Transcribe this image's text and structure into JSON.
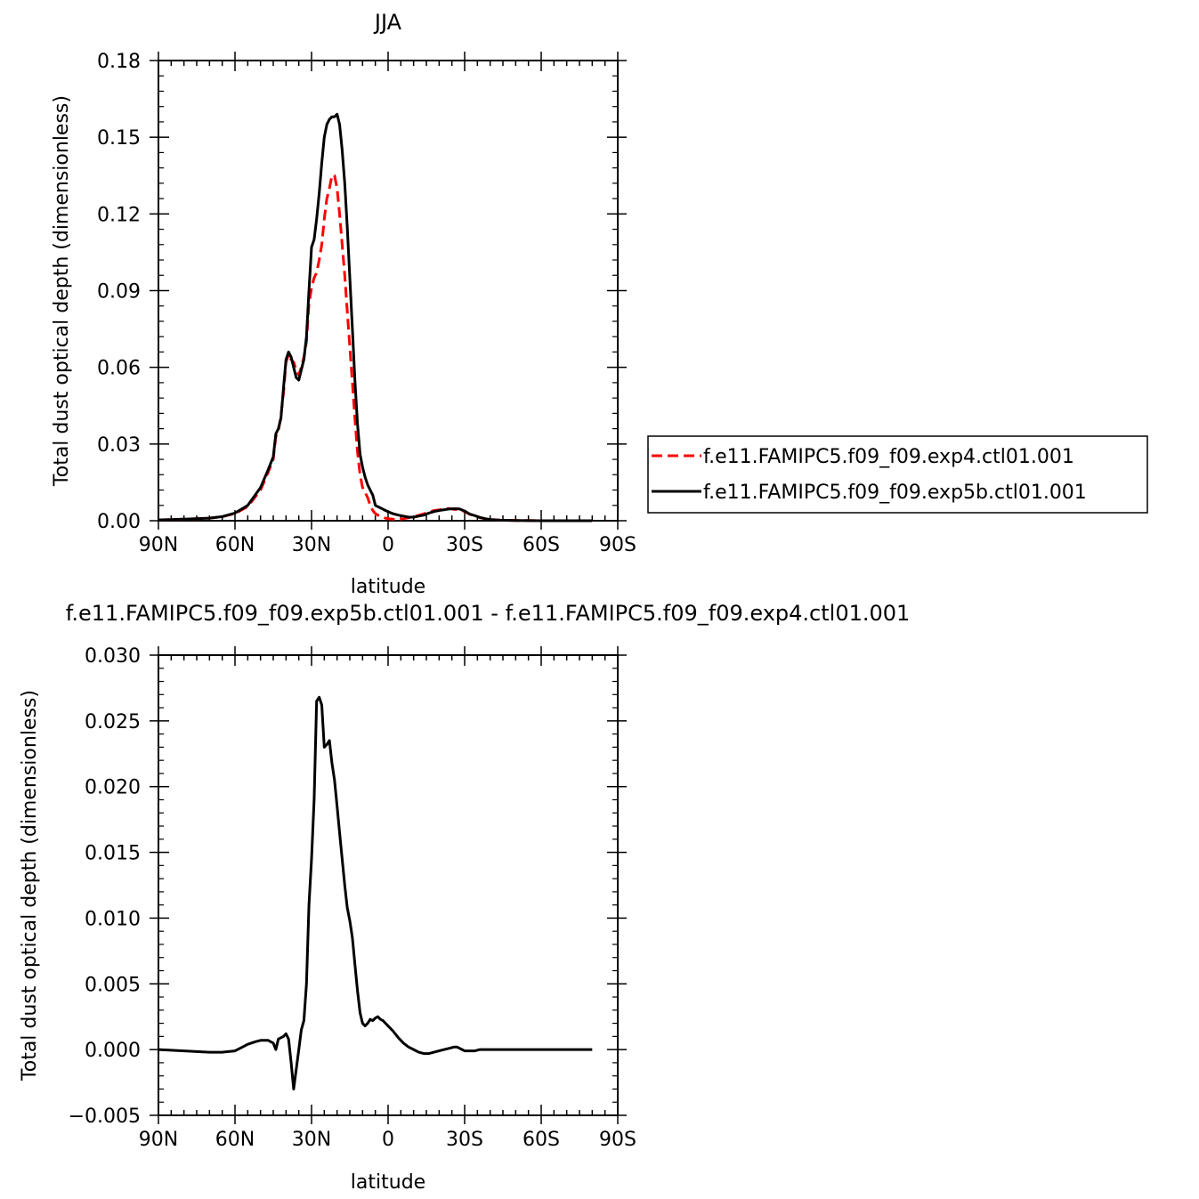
{
  "chart_data": [
    {
      "type": "line",
      "title": "JJA",
      "xlabel": "latitude",
      "ylabel": "Total dust optical depth (dimensionless)",
      "x_ticks": [
        {
          "value": 90,
          "label": "90N"
        },
        {
          "value": 60,
          "label": "60N"
        },
        {
          "value": 30,
          "label": "30N"
        },
        {
          "value": 0,
          "label": "0"
        },
        {
          "value": -30,
          "label": "30S"
        },
        {
          "value": -60,
          "label": "60S"
        },
        {
          "value": -90,
          "label": "90S"
        }
      ],
      "xlim": [
        90,
        -90
      ],
      "ylim": [
        0,
        0.18
      ],
      "y_ticks": [
        {
          "value": 0,
          "label": "0.00"
        },
        {
          "value": 0.03,
          "label": "0.03"
        },
        {
          "value": 0.06,
          "label": "0.06"
        },
        {
          "value": 0.09,
          "label": "0.09"
        },
        {
          "value": 0.12,
          "label": "0.12"
        },
        {
          "value": 0.15,
          "label": "0.15"
        },
        {
          "value": 0.18,
          "label": "0.18"
        }
      ],
      "legend": "right",
      "series": [
        {
          "name": "f.e11.FAMIPC5.f09_f09.exp4.ctl01.001",
          "color": "#ff0000",
          "dash": "dashed",
          "x": [
            90,
            80,
            70,
            65,
            60,
            55,
            50,
            47,
            45,
            44,
            43,
            42,
            41,
            40,
            39,
            38,
            37,
            36,
            35,
            34,
            33,
            32,
            31,
            30,
            29,
            28,
            27,
            26,
            25,
            24,
            23,
            22,
            21,
            20,
            19,
            18,
            17,
            16,
            15,
            14,
            13,
            12,
            11,
            10,
            9,
            8,
            7,
            6,
            5,
            4,
            3,
            2,
            1,
            0,
            -2,
            -4,
            -6,
            -8,
            -10,
            -12,
            -14,
            -16,
            -18,
            -20,
            -22,
            -24,
            -26,
            -28,
            -30,
            -32,
            -34,
            -36,
            -38,
            -40,
            -44,
            -50,
            -60,
            -70,
            -80
          ],
          "y": [
            0.0003,
            0.0006,
            0.001,
            0.0016,
            0.0028,
            0.0055,
            0.012,
            0.019,
            0.024,
            0.033,
            0.035,
            0.041,
            0.05,
            0.062,
            0.065,
            0.063,
            0.062,
            0.059,
            0.057,
            0.06,
            0.064,
            0.07,
            0.085,
            0.091,
            0.095,
            0.097,
            0.102,
            0.108,
            0.118,
            0.126,
            0.13,
            0.135,
            0.135,
            0.13,
            0.12,
            0.108,
            0.096,
            0.082,
            0.068,
            0.054,
            0.04,
            0.027,
            0.018,
            0.013,
            0.011,
            0.009,
            0.006,
            0.004,
            0.0028,
            0.0022,
            0.0018,
            0.0014,
            0.001,
            0.0008,
            0.0006,
            0.0005,
            0.0008,
            0.0012,
            0.0016,
            0.0021,
            0.0027,
            0.0033,
            0.004,
            0.0042,
            0.0046,
            0.0048,
            0.0044,
            0.0045,
            0.0036,
            0.0025,
            0.0019,
            0.0012,
            0.0008,
            0.0005,
            0.0002,
            0.0001,
            0.0,
            0.0,
            0.0
          ]
        },
        {
          "name": "f.e11.FAMIPC5.f09_f09.exp5b.ctl01.001",
          "color": "#000000",
          "dash": "solid",
          "x": [
            90,
            80,
            70,
            65,
            60,
            55,
            50,
            47,
            45,
            44,
            43,
            42,
            41,
            40,
            39,
            38,
            37,
            36,
            35,
            34,
            33,
            32,
            31,
            30,
            29,
            28,
            27,
            26,
            25,
            24,
            23,
            22,
            21,
            20,
            19,
            18,
            17,
            16,
            15,
            14,
            13,
            12,
            11,
            10,
            9,
            8,
            7,
            6,
            5,
            4,
            3,
            2,
            1,
            0,
            -2,
            -4,
            -6,
            -8,
            -10,
            -12,
            -14,
            -16,
            -18,
            -20,
            -22,
            -24,
            -26,
            -28,
            -30,
            -32,
            -34,
            -36,
            -38,
            -40,
            -44,
            -50,
            -60,
            -70,
            -80
          ],
          "y": [
            0.0003,
            0.0006,
            0.001,
            0.0016,
            0.003,
            0.006,
            0.013,
            0.02,
            0.025,
            0.034,
            0.036,
            0.04,
            0.052,
            0.063,
            0.066,
            0.064,
            0.06,
            0.056,
            0.055,
            0.059,
            0.063,
            0.072,
            0.09,
            0.107,
            0.11,
            0.118,
            0.128,
            0.14,
            0.15,
            0.155,
            0.157,
            0.158,
            0.158,
            0.159,
            0.155,
            0.145,
            0.132,
            0.115,
            0.095,
            0.075,
            0.055,
            0.038,
            0.026,
            0.021,
            0.017,
            0.014,
            0.012,
            0.01,
            0.006,
            0.0055,
            0.005,
            0.0045,
            0.004,
            0.0035,
            0.0027,
            0.0022,
            0.0018,
            0.0014,
            0.0014,
            0.0018,
            0.0022,
            0.003,
            0.0036,
            0.004,
            0.0043,
            0.0046,
            0.0047,
            0.0046,
            0.0038,
            0.0026,
            0.002,
            0.0013,
            0.0008,
            0.0005,
            0.0002,
            0.0001,
            0.0,
            0.0,
            0.0
          ]
        }
      ]
    },
    {
      "type": "line",
      "title": "f.e11.FAMIPC5.f09_f09.exp5b.ctl01.001 - f.e11.FAMIPC5.f09_f09.exp4.ctl01.001",
      "xlabel": "latitude",
      "ylabel": "Total dust optical depth (dimensionless)",
      "x_ticks": [
        {
          "value": 90,
          "label": "90N"
        },
        {
          "value": 60,
          "label": "60N"
        },
        {
          "value": 30,
          "label": "30N"
        },
        {
          "value": 0,
          "label": "0"
        },
        {
          "value": -30,
          "label": "30S"
        },
        {
          "value": -60,
          "label": "60S"
        },
        {
          "value": -90,
          "label": "90S"
        }
      ],
      "xlim": [
        90,
        -90
      ],
      "ylim": [
        -0.005,
        0.03
      ],
      "y_ticks": [
        {
          "value": -0.005,
          "label": "−0.005"
        },
        {
          "value": 0,
          "label": "0.000"
        },
        {
          "value": 0.005,
          "label": "0.005"
        },
        {
          "value": 0.01,
          "label": "0.010"
        },
        {
          "value": 0.015,
          "label": "0.015"
        },
        {
          "value": 0.02,
          "label": "0.020"
        },
        {
          "value": 0.025,
          "label": "0.025"
        },
        {
          "value": 0.03,
          "label": "0.030"
        }
      ],
      "series": [
        {
          "color": "#000000",
          "dash": "solid",
          "x": [
            90,
            80,
            70,
            65,
            60,
            57,
            55,
            52,
            50,
            48,
            47,
            46,
            45,
            44,
            43,
            42,
            41,
            40,
            39,
            38,
            37,
            36,
            35,
            34,
            33,
            32,
            31,
            30,
            29,
            28,
            27,
            26,
            25,
            24,
            23,
            22,
            21,
            20,
            19,
            18,
            17,
            16,
            15,
            14,
            13,
            12,
            11,
            10,
            9,
            8,
            7,
            6,
            5,
            4,
            3,
            2,
            1,
            0,
            -2,
            -4,
            -6,
            -8,
            -10,
            -12,
            -14,
            -16,
            -18,
            -20,
            -22,
            -24,
            -26,
            -27,
            -28,
            -29,
            -30,
            -32,
            -34,
            -36,
            -38,
            -40,
            -44,
            -50,
            -60,
            -70,
            -80
          ],
          "y": [
            0.0,
            -0.0001,
            -0.0002,
            -0.0002,
            -0.0001,
            0.0002,
            0.0004,
            0.0006,
            0.0007,
            0.0007,
            0.0007,
            0.0006,
            0.0005,
            0.0,
            0.0008,
            0.0009,
            0.001,
            0.0012,
            0.0008,
            -0.001,
            -0.003,
            -0.0015,
            0.0,
            0.0015,
            0.0022,
            0.005,
            0.011,
            0.0145,
            0.019,
            0.0265,
            0.0268,
            0.0262,
            0.023,
            0.0232,
            0.0235,
            0.0218,
            0.0205,
            0.0185,
            0.0165,
            0.0145,
            0.0125,
            0.0108,
            0.0098,
            0.0085,
            0.0065,
            0.0045,
            0.0028,
            0.002,
            0.0018,
            0.002,
            0.0023,
            0.0022,
            0.0024,
            0.0025,
            0.0023,
            0.0022,
            0.002,
            0.0018,
            0.0014,
            0.0009,
            0.0005,
            0.0002,
            0.0,
            -0.0002,
            -0.0003,
            -0.0003,
            -0.0002,
            -0.0001,
            0.0,
            0.0001,
            0.0002,
            0.0002,
            0.0001,
            0.0,
            -0.0001,
            -0.0001,
            -0.0001,
            0.0,
            0.0,
            0.0,
            0.0,
            0.0,
            0.0,
            0.0,
            0.0
          ]
        }
      ]
    }
  ]
}
